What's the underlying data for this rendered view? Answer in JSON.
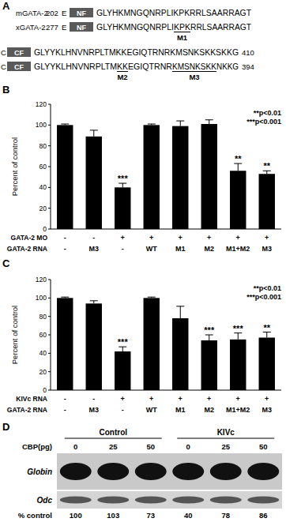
{
  "panel_a": {
    "label": "A",
    "rows": [
      {
        "species": "mGATA-2",
        "position": 202,
        "prefix": "E",
        "domain": "NF",
        "segments": [
          {
            "text": "GLYHKMNGQNRPLIKPKRRLSAARRAGT"
          }
        ]
      },
      {
        "species": "xGATA-2",
        "position": 277,
        "prefix": "E",
        "domain": "NF",
        "segments": [
          {
            "text": "GLYHKMNGQNRPLI"
          },
          {
            "text": "KPK",
            "mark": "M1"
          },
          {
            "text": "RRLSAARRAGT"
          }
        ]
      },
      {
        "species": "C",
        "domain": "CF",
        "segments": [
          {
            "text": "GLYYKLHNVNRPLTMKKEGIQTRNRKMSNKSKKSKKG"
          }
        ],
        "end": 410
      },
      {
        "species": "C",
        "domain": "CF",
        "segments": [
          {
            "text": "GLYYKLHNVNRPLTM"
          },
          {
            "text": "KK",
            "mark": "M2"
          },
          {
            "text": "EGIQTRNR"
          },
          {
            "text": "KMSNKSKK",
            "mark": "M3"
          },
          {
            "text": "NKKG"
          }
        ],
        "end": 394
      }
    ]
  },
  "chart_data": [
    {
      "type": "bar",
      "title": "B",
      "y_label": "Percent of control",
      "categories": [
        null,
        null,
        null,
        null,
        null,
        null,
        null,
        null
      ],
      "values": [
        100,
        89,
        40,
        100,
        99,
        101,
        56,
        53
      ],
      "errors": [
        1,
        6,
        4,
        1,
        5,
        4,
        7,
        3
      ],
      "significance": [
        "",
        "",
        "***",
        "",
        "",
        "",
        "**",
        "**"
      ],
      "color": "#000000",
      "ylim": [
        0,
        120
      ],
      "yticks": [
        0,
        20,
        40,
        60,
        80,
        100,
        120
      ],
      "annotations": [
        "**p<0.01",
        "***p<0.001"
      ],
      "conditions": [
        {
          "label": "GATA-2 MO",
          "values": [
            "-",
            "-",
            "+",
            "+",
            "+",
            "+",
            "+",
            "+"
          ]
        },
        {
          "label": "GATA-2 RNA",
          "values": [
            "-",
            "M3",
            "-",
            "WT",
            "M1",
            "M2",
            "M1+M2",
            "M3"
          ]
        }
      ]
    },
    {
      "type": "bar",
      "title": "C",
      "y_label": "Percent of control",
      "categories": [
        null,
        null,
        null,
        null,
        null,
        null,
        null,
        null
      ],
      "values": [
        100,
        94,
        42,
        100,
        78,
        54,
        55,
        57
      ],
      "errors": [
        1,
        3,
        5,
        1,
        13,
        6,
        7,
        6
      ],
      "significance": [
        "",
        "",
        "***",
        "",
        "",
        "***",
        "***",
        "**"
      ],
      "color": "#000000",
      "ylim": [
        0,
        120
      ],
      "yticks": [
        0,
        20,
        40,
        60,
        80,
        100,
        120
      ],
      "annotations": [
        "**p<0.01",
        "***p<0.001"
      ],
      "conditions": [
        {
          "label": "KIVc RNA",
          "values": [
            "-",
            "-",
            "+",
            "+",
            "+",
            "+",
            "+",
            "+"
          ]
        },
        {
          "label": "GATA-2 RNA",
          "values": [
            "-",
            "M3",
            "-",
            "WT",
            "M1",
            "M2",
            "M1+M2",
            "M3"
          ]
        }
      ]
    }
  ],
  "panel_d": {
    "label": "D",
    "groups": [
      "Control",
      "KIVc"
    ],
    "dose_label": "CBP(pg)",
    "doses": [
      0,
      25,
      50,
      0,
      25,
      50
    ],
    "bands": [
      "Globin",
      "Odc"
    ],
    "percent_label": "% control",
    "percent": [
      100,
      103,
      73,
      40,
      78,
      86
    ]
  }
}
